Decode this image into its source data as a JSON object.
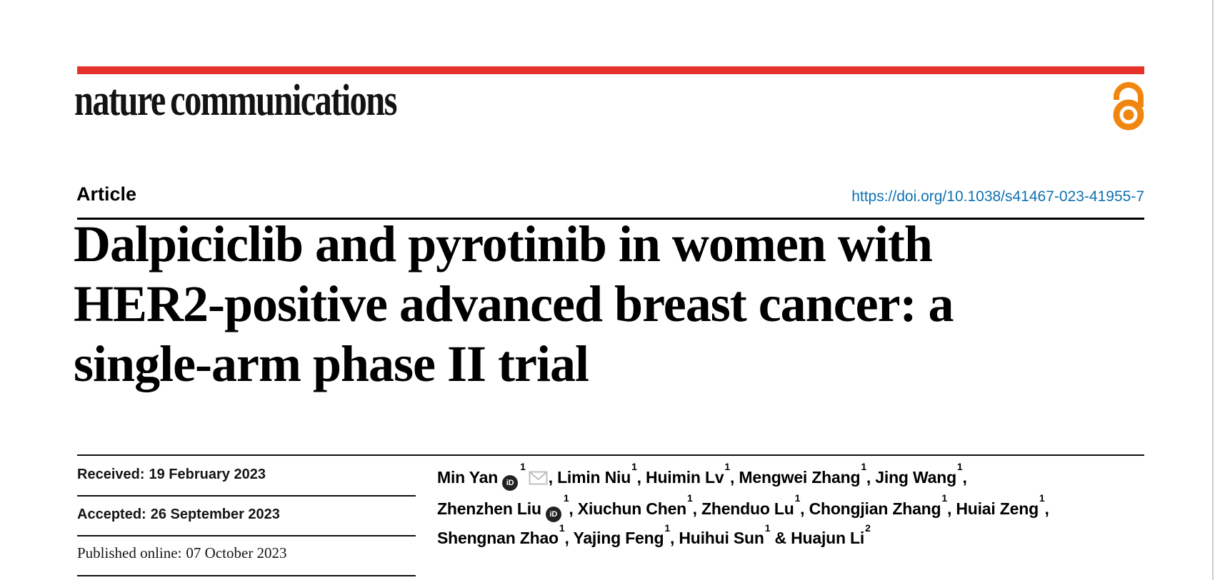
{
  "colors": {
    "brand_red": "#e5332b",
    "doi_blue": "#0f72b2",
    "oa_orange": "#f0860f",
    "rule_black": "#111111",
    "edge_gray": "#cccccc",
    "envelope_gray": "#bfbfbf",
    "orcid_black": "#222222"
  },
  "brand": {
    "logo_text": "nature communications",
    "open_access_icon": "open-access-lock-icon"
  },
  "article": {
    "section_label": "Article",
    "doi": "https://doi.org/10.1038/s41467-023-41955-7",
    "title": "Dalpiciclib and pyrotinib in women with\nHER2-positive advanced breast cancer: a\nsingle-arm phase II trial"
  },
  "dates": {
    "rows": [
      {
        "label": "Received:",
        "value": "19 February 2023"
      },
      {
        "label": "Accepted:",
        "value": "26 September 2023"
      },
      {
        "label": "Published online:",
        "value": "07 October 2023"
      }
    ]
  },
  "icons": {
    "orcid_glyph": "iD",
    "email_icon": "envelope-icon",
    "open_access_color_name": "open-access-orange"
  },
  "authors": {
    "lines": [
      [
        {
          "text": "Min Yan",
          "orcid": true,
          "sup": "1",
          "env": true,
          "tail": ", "
        },
        {
          "text": "Limin Niu",
          "sup": "1",
          "tail": ", "
        },
        {
          "text": "Huimin Lv",
          "sup": "1",
          "tail": ", "
        },
        {
          "text": "Mengwei Zhang",
          "sup": "1",
          "tail": ", "
        },
        {
          "text": "Jing Wang",
          "sup": "1",
          "tail": ","
        }
      ],
      [
        {
          "text": "Zhenzhen Liu",
          "orcid": true,
          "sup": "1",
          "tail": ", "
        },
        {
          "text": "Xiuchun Chen",
          "sup": "1",
          "tail": ", "
        },
        {
          "text": "Zhenduo Lu",
          "sup": "1",
          "tail": ", "
        },
        {
          "text": "Chongjian Zhang",
          "sup": "1",
          "tail": ", "
        },
        {
          "text": "Huiai Zeng",
          "sup": "1",
          "tail": ","
        }
      ],
      [
        {
          "text": "Shengnan Zhao",
          "sup": "1",
          "tail": ", "
        },
        {
          "text": "Yajing Feng",
          "sup": "1",
          "tail": ", "
        },
        {
          "text": "Huihui Sun",
          "sup": "1",
          "tail": " & "
        },
        {
          "text": "Huajun Li",
          "sup": "2",
          "tail": ""
        }
      ]
    ]
  }
}
